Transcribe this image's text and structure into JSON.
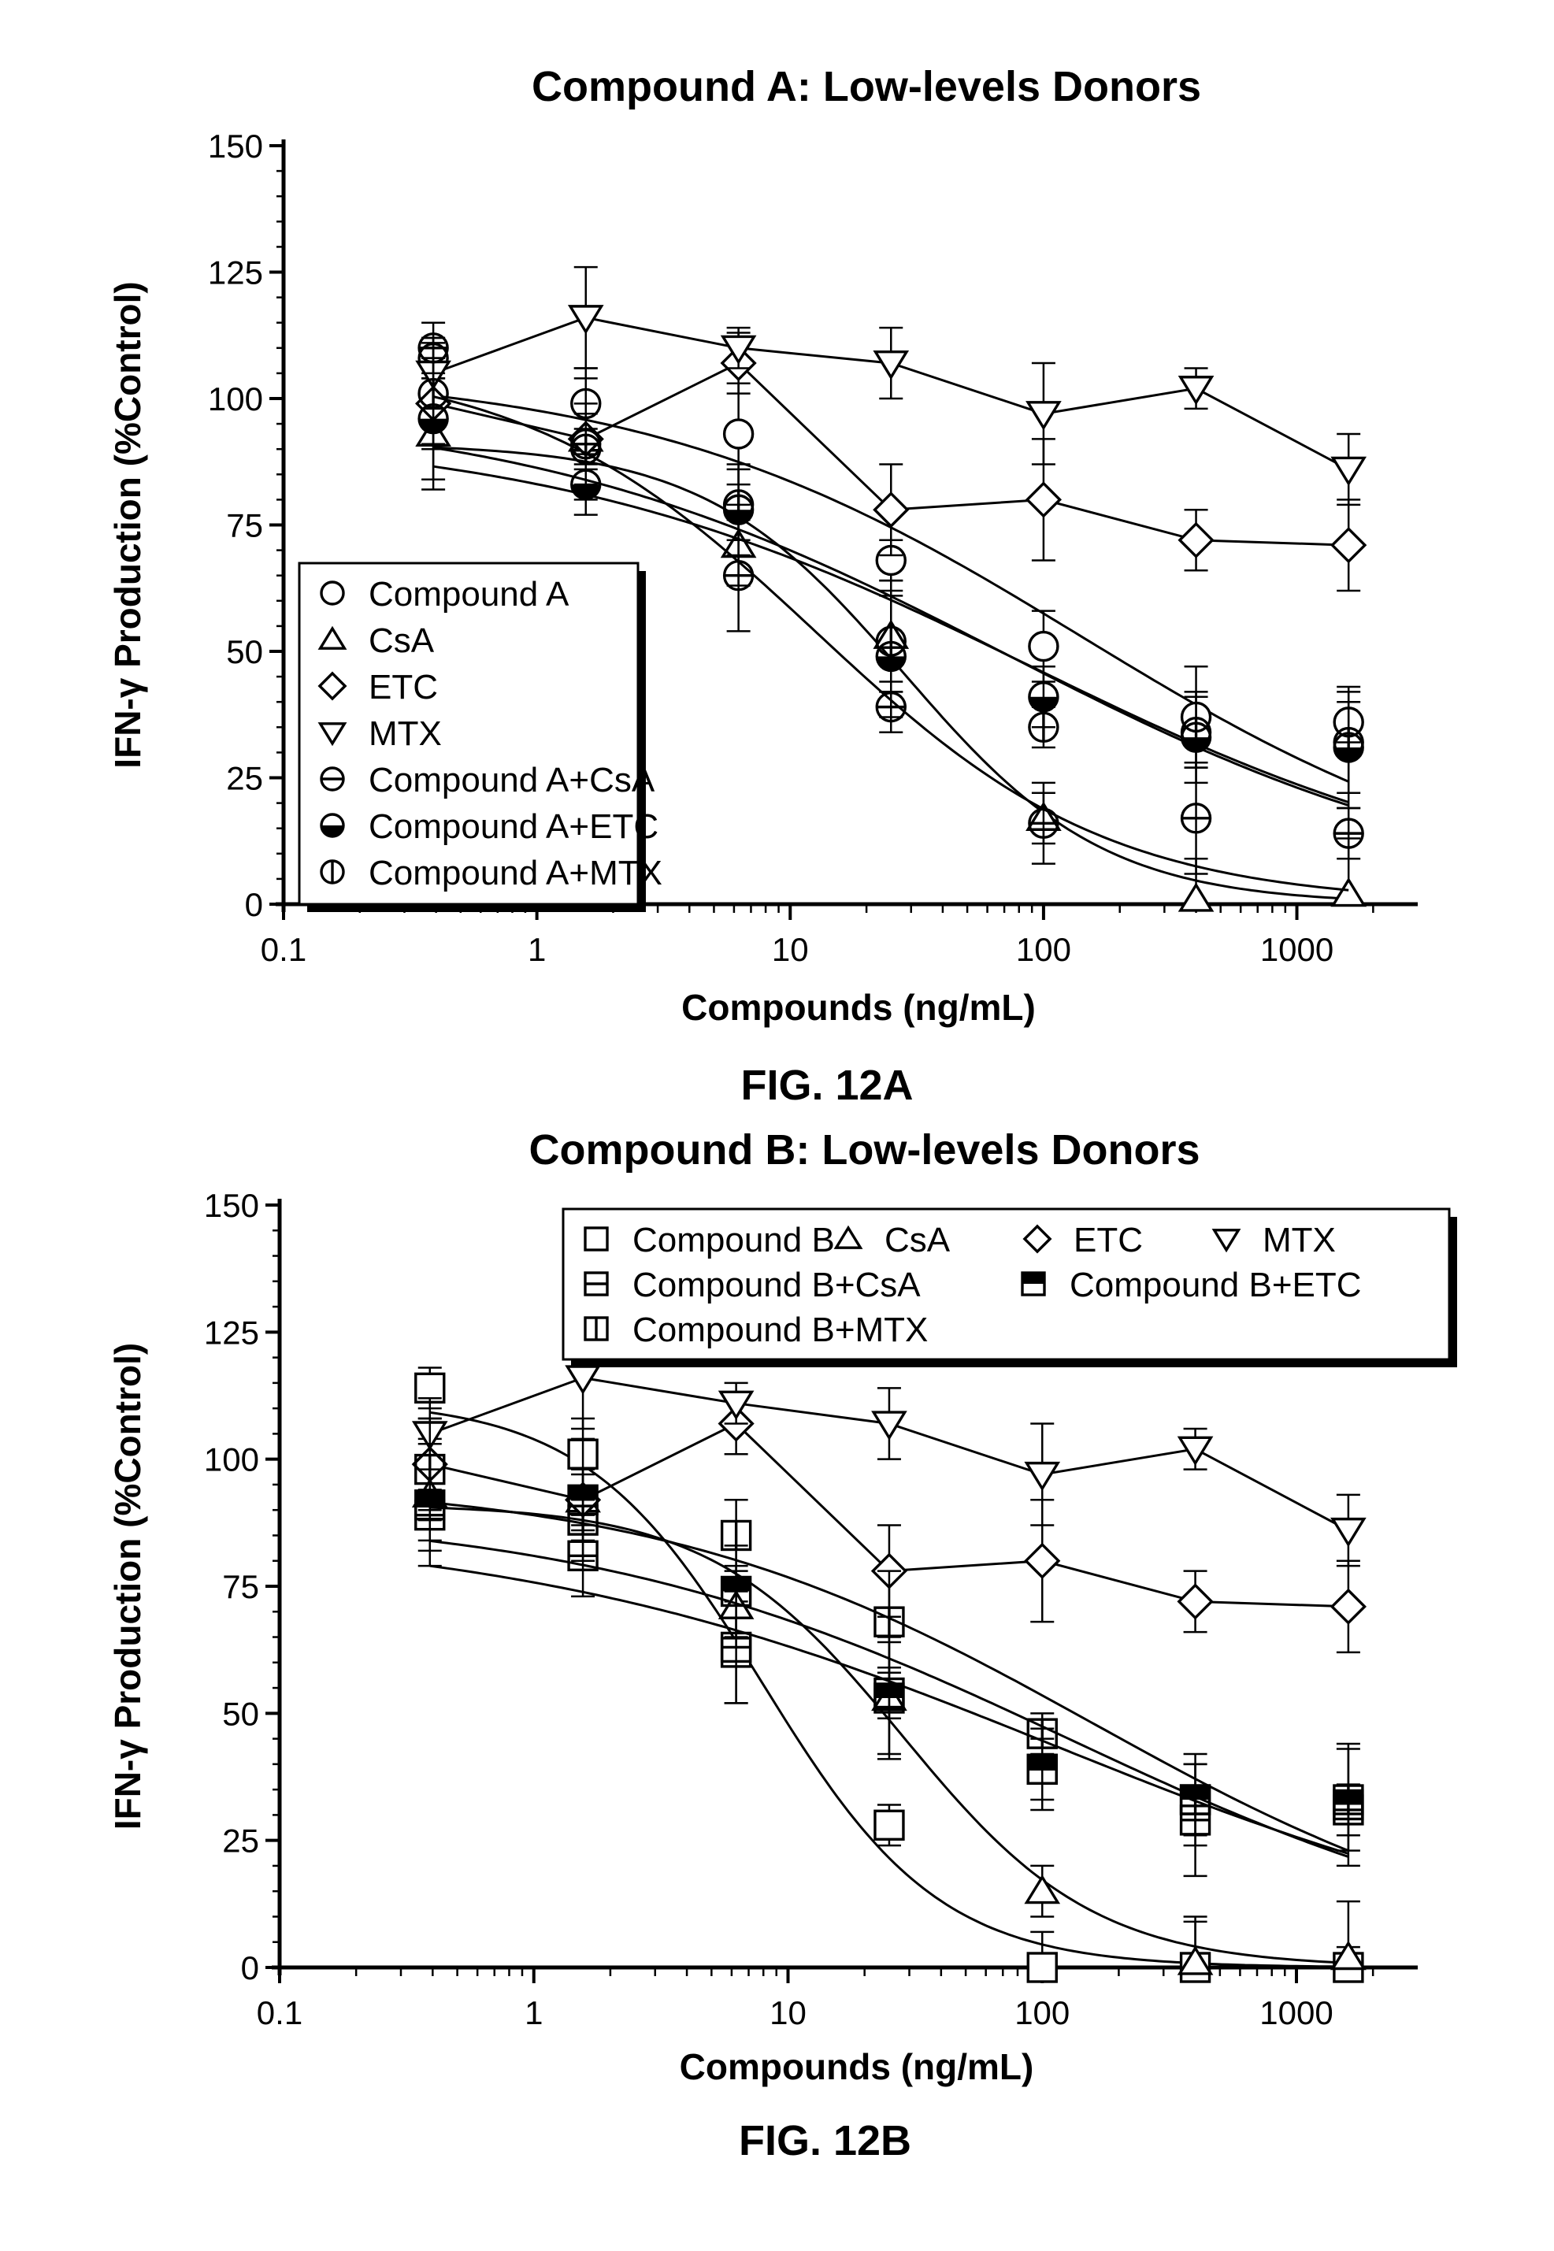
{
  "chart_data": [
    {
      "type": "scatter",
      "title": "Compound A: Low-levels Donors",
      "figure_label": "FIG. 12A",
      "xlabel": "Compounds (ng/mL)",
      "ylabel": "IFN-γ Production (%Control)",
      "xscale": "log",
      "xlim": [
        0.1,
        3000
      ],
      "ylim": [
        0,
        150
      ],
      "x_ticks": [
        "0.1",
        "1",
        "10",
        "100",
        "1000"
      ],
      "y_ticks": [
        "0",
        "25",
        "50",
        "75",
        "100",
        "125",
        "150"
      ],
      "legend_position": "center-left",
      "x": [
        0.39,
        1.56,
        6.25,
        25,
        100,
        400,
        1600
      ],
      "series": [
        {
          "name": "Compound A",
          "marker": "circle",
          "values": [
            108,
            99,
            93,
            68,
            51,
            37,
            36
          ],
          "fit": true
        },
        {
          "name": "CsA",
          "marker": "triangle-up",
          "values": [
            93,
            92,
            71,
            53,
            17,
            1,
            2
          ],
          "fit": true
        },
        {
          "name": "ETC",
          "marker": "diamond",
          "values": [
            99,
            92,
            107,
            78,
            80,
            72,
            71
          ],
          "fit": false
        },
        {
          "name": "MTX",
          "marker": "triangle-down",
          "values": [
            105,
            116,
            110,
            107,
            97,
            102,
            86
          ],
          "fit": false
        },
        {
          "name": "Compound A+CsA",
          "marker": "circle-hbar",
          "values": [
            110,
            91,
            65,
            39,
            16,
            17,
            14
          ],
          "fit": true
        },
        {
          "name": "Compound A+ETC",
          "marker": "circle-half",
          "values": [
            96,
            83,
            78,
            49,
            41,
            33,
            31
          ],
          "fit": true
        },
        {
          "name": "Compound A+MTX",
          "marker": "circle-vbar",
          "values": [
            101,
            90,
            79,
            52,
            35,
            34,
            32
          ],
          "fit": true
        }
      ]
    },
    {
      "type": "scatter",
      "title": "Compound B: Low-levels Donors",
      "figure_label": "FIG. 12B",
      "xlabel": "Compounds (ng/mL)",
      "ylabel": "IFN-γ Production (%Control)",
      "xscale": "log",
      "xlim": [
        0.1,
        3000
      ],
      "ylim": [
        0,
        150
      ],
      "x_ticks": [
        "0.1",
        "1",
        "10",
        "100",
        "1000"
      ],
      "y_ticks": [
        "0",
        "25",
        "50",
        "75",
        "100",
        "125",
        "150"
      ],
      "legend_position": "top-right",
      "x": [
        0.39,
        1.56,
        6.25,
        25,
        100,
        400,
        1600
      ],
      "series": [
        {
          "name": "Compound B",
          "marker": "square",
          "values": [
            114,
            101,
            62,
            28,
            0,
            0,
            0
          ],
          "fit": true
        },
        {
          "name": "CsA",
          "marker": "triangle-up",
          "values": [
            93,
            92,
            71,
            53,
            15,
            1,
            2
          ],
          "fit": true
        },
        {
          "name": "ETC",
          "marker": "diamond",
          "values": [
            99,
            92,
            107,
            78,
            80,
            72,
            71
          ],
          "fit": false
        },
        {
          "name": "MTX",
          "marker": "triangle-down",
          "values": [
            105,
            116,
            111,
            107,
            97,
            102,
            86
          ],
          "fit": false
        },
        {
          "name": "Compound B+CsA",
          "marker": "square-hbar",
          "values": [
            89,
            81,
            63,
            54,
            39,
            29,
            31
          ],
          "fit": true
        },
        {
          "name": "Compound B+ETC",
          "marker": "square-half",
          "values": [
            91,
            92,
            74,
            53,
            39,
            33,
            32
          ],
          "fit": true
        },
        {
          "name": "Compound B+MTX",
          "marker": "square-vbar",
          "values": [
            98,
            88,
            85,
            68,
            46,
            33,
            33
          ],
          "fit": true
        }
      ]
    }
  ]
}
